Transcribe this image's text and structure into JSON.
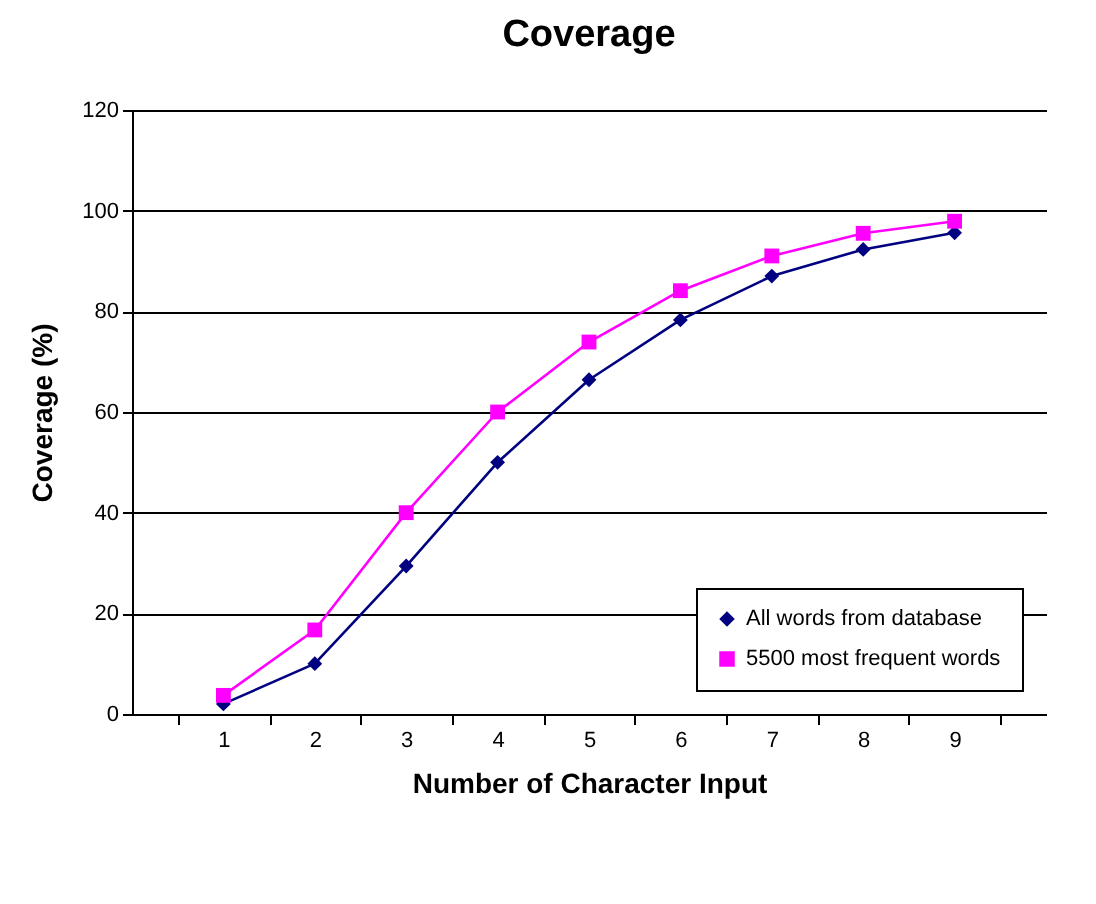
{
  "chart_data": {
    "type": "line",
    "title": "Coverage",
    "xlabel": "Number of Character Input",
    "ylabel": "Coverage (%)",
    "categories": [
      "1",
      "2",
      "3",
      "4",
      "5",
      "6",
      "7",
      "8",
      "9"
    ],
    "series": [
      {
        "name": "All words from database",
        "color": "#000080",
        "marker": "diamond",
        "values": [
          2,
          10,
          29.4,
          50,
          66.4,
          78.3,
          87,
          92.3,
          95.6
        ]
      },
      {
        "name": "5500 most frequent words",
        "color": "#ff00ff",
        "marker": "square",
        "values": [
          3.7,
          16.7,
          40,
          60,
          73.9,
          84.1,
          91,
          95.5,
          97.9
        ]
      }
    ],
    "ylim": [
      0,
      120
    ],
    "yticks": [
      0,
      20,
      40,
      60,
      80,
      100,
      120
    ],
    "grid": "y",
    "legend": "bottom right"
  }
}
